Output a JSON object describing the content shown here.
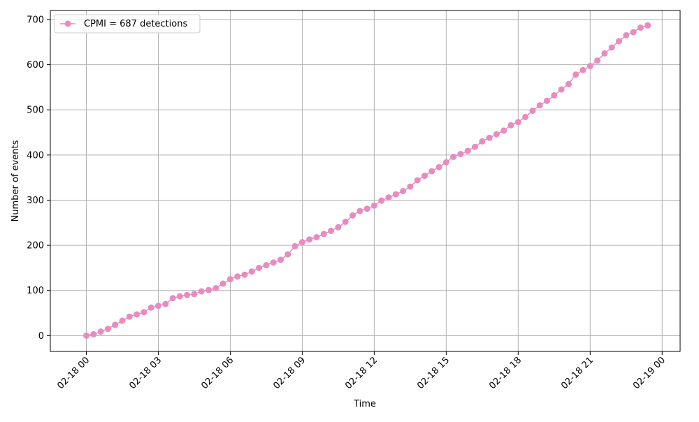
{
  "chart_data": {
    "type": "line",
    "title": "",
    "xlabel": "Time",
    "ylabel": "Number of events",
    "xlim_hours": [
      -1.5,
      24.75
    ],
    "ylim": [
      -35,
      720
    ],
    "x_ticks": [
      {
        "hour": 0,
        "label": "02-18 00"
      },
      {
        "hour": 3,
        "label": "02-18 03"
      },
      {
        "hour": 6,
        "label": "02-18 06"
      },
      {
        "hour": 9,
        "label": "02-18 09"
      },
      {
        "hour": 12,
        "label": "02-18 12"
      },
      {
        "hour": 15,
        "label": "02-18 15"
      },
      {
        "hour": 18,
        "label": "02-18 18"
      },
      {
        "hour": 21,
        "label": "02-18 21"
      },
      {
        "hour": 24,
        "label": "02-19 00"
      }
    ],
    "y_ticks": [
      0,
      100,
      200,
      300,
      400,
      500,
      600,
      700
    ],
    "grid": true,
    "legend_position": "top-left",
    "series": [
      {
        "name": "CPMI = 687 detections",
        "color": "#e98ac0",
        "x_hours": [
          0.0,
          0.3,
          0.6,
          0.9,
          1.2,
          1.5,
          1.8,
          2.1,
          2.4,
          2.7,
          3.0,
          3.3,
          3.6,
          3.9,
          4.2,
          4.5,
          4.8,
          5.1,
          5.4,
          5.7,
          6.0,
          6.3,
          6.6,
          6.9,
          7.2,
          7.5,
          7.8,
          8.1,
          8.4,
          8.7,
          9.0,
          9.3,
          9.6,
          9.9,
          10.2,
          10.5,
          10.8,
          11.1,
          11.4,
          11.7,
          12.0,
          12.3,
          12.6,
          12.9,
          13.2,
          13.5,
          13.8,
          14.1,
          14.4,
          14.7,
          15.0,
          15.3,
          15.6,
          15.9,
          16.2,
          16.5,
          16.8,
          17.1,
          17.4,
          17.7,
          18.0,
          18.3,
          18.6,
          18.9,
          19.2,
          19.5,
          19.8,
          20.1,
          20.4,
          20.7,
          21.0,
          21.3,
          21.6,
          21.9,
          22.2,
          22.5,
          22.8,
          23.1,
          23.4
        ],
        "values": [
          0,
          3,
          9,
          15,
          24,
          33,
          42,
          47,
          52,
          62,
          66,
          70,
          83,
          87,
          90,
          92,
          98,
          101,
          105,
          115,
          125,
          131,
          135,
          142,
          150,
          156,
          162,
          168,
          180,
          198,
          207,
          213,
          218,
          225,
          232,
          240,
          252,
          266,
          276,
          281,
          288,
          299,
          306,
          313,
          320,
          330,
          344,
          354,
          364,
          373,
          384,
          396,
          402,
          409,
          418,
          430,
          438,
          446,
          454,
          466,
          473,
          484,
          498,
          510,
          520,
          532,
          545,
          557,
          578,
          588,
          597,
          609,
          625,
          638,
          652,
          665,
          672,
          682,
          687
        ]
      }
    ]
  }
}
